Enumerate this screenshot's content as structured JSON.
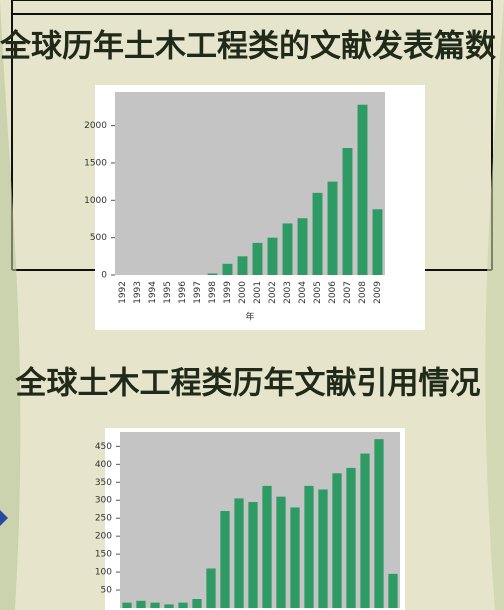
{
  "chart_data": [
    {
      "type": "bar",
      "title": "全球历年土木工程类的文献发表篇数",
      "xlabel": "年",
      "categories": [
        "1992",
        "1993",
        "1994",
        "1995",
        "1996",
        "1997",
        "1998",
        "1999",
        "2000",
        "2001",
        "2002",
        "2003",
        "2004",
        "2005",
        "2006",
        "2007",
        "2008",
        "2009"
      ],
      "values": [
        0,
        0,
        0,
        0,
        0,
        0,
        20,
        150,
        250,
        430,
        500,
        690,
        760,
        1100,
        1250,
        1700,
        2280,
        880
      ],
      "color": "#2e9a64",
      "ylim": [
        0,
        2450
      ],
      "yticks": [
        0,
        500,
        1000,
        1500,
        2000
      ]
    },
    {
      "type": "bar",
      "title": "全球土木工程类历年文献引用情况",
      "categories": [
        null,
        null,
        null,
        null,
        null,
        null,
        null,
        null,
        null,
        null,
        null,
        null,
        null,
        null,
        null,
        null,
        null,
        null,
        null,
        null
      ],
      "values": [
        15,
        20,
        15,
        10,
        15,
        25,
        110,
        270,
        305,
        295,
        340,
        310,
        280,
        340,
        330,
        375,
        390,
        430,
        470,
        95
      ],
      "color": "#2e9a64",
      "ylim": [
        0,
        490
      ],
      "yticks": [
        50,
        100,
        150,
        200,
        250,
        300,
        350,
        400,
        450
      ]
    }
  ]
}
